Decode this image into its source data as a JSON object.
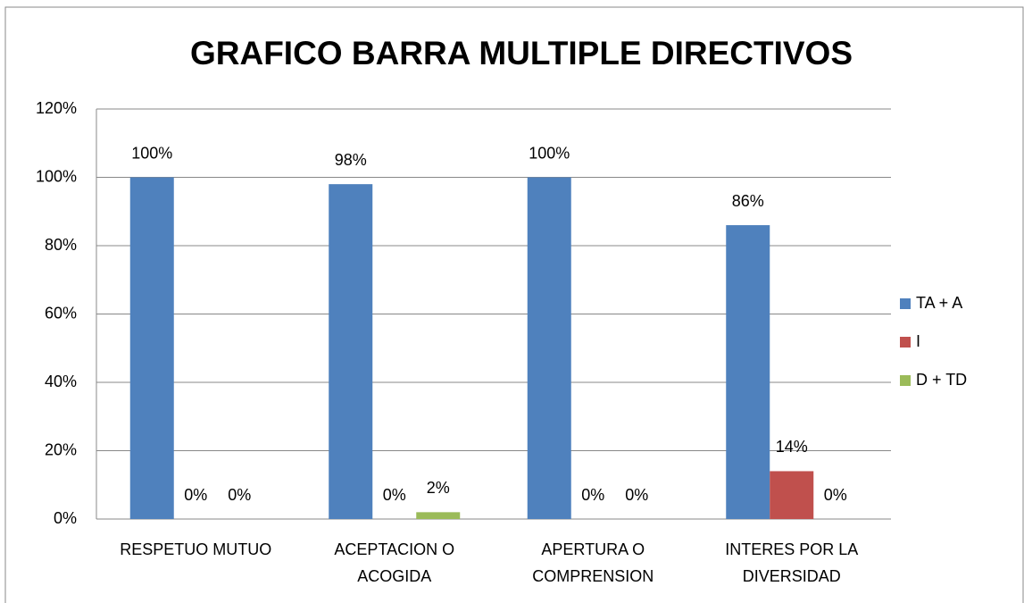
{
  "chart_data": {
    "type": "bar",
    "title": "GRAFICO BARRA MULTIPLE DIRECTIVOS",
    "categories": [
      "RESPETUO MUTUO",
      "ACEPTACION O ACOGIDA",
      "APERTURA O COMPRENSION",
      "INTERES POR LA DIVERSIDAD"
    ],
    "series": [
      {
        "name": "TA + A",
        "color": "#4f81bd",
        "values": [
          100,
          98,
          100,
          86
        ],
        "value_labels": [
          "100%",
          "98%",
          "100%",
          "86%"
        ]
      },
      {
        "name": "I",
        "color": "#c0504d",
        "values": [
          0,
          0,
          0,
          14
        ],
        "value_labels": [
          "0%",
          "0%",
          "0%",
          "14%"
        ]
      },
      {
        "name": "D + TD",
        "color": "#9bbb59",
        "values": [
          0,
          2,
          0,
          0
        ],
        "value_labels": [
          "0%",
          "2%",
          "0%",
          "0%"
        ]
      }
    ],
    "ylim": [
      0,
      120
    ],
    "yticks": [
      {
        "value": 0,
        "label": "0%"
      },
      {
        "value": 20,
        "label": "20%"
      },
      {
        "value": 40,
        "label": "40%"
      },
      {
        "value": 60,
        "label": "60%"
      },
      {
        "value": 80,
        "label": "80%"
      },
      {
        "value": 100,
        "label": "100%"
      },
      {
        "value": 120,
        "label": "120%"
      }
    ],
    "grid": true,
    "legend": "right"
  }
}
